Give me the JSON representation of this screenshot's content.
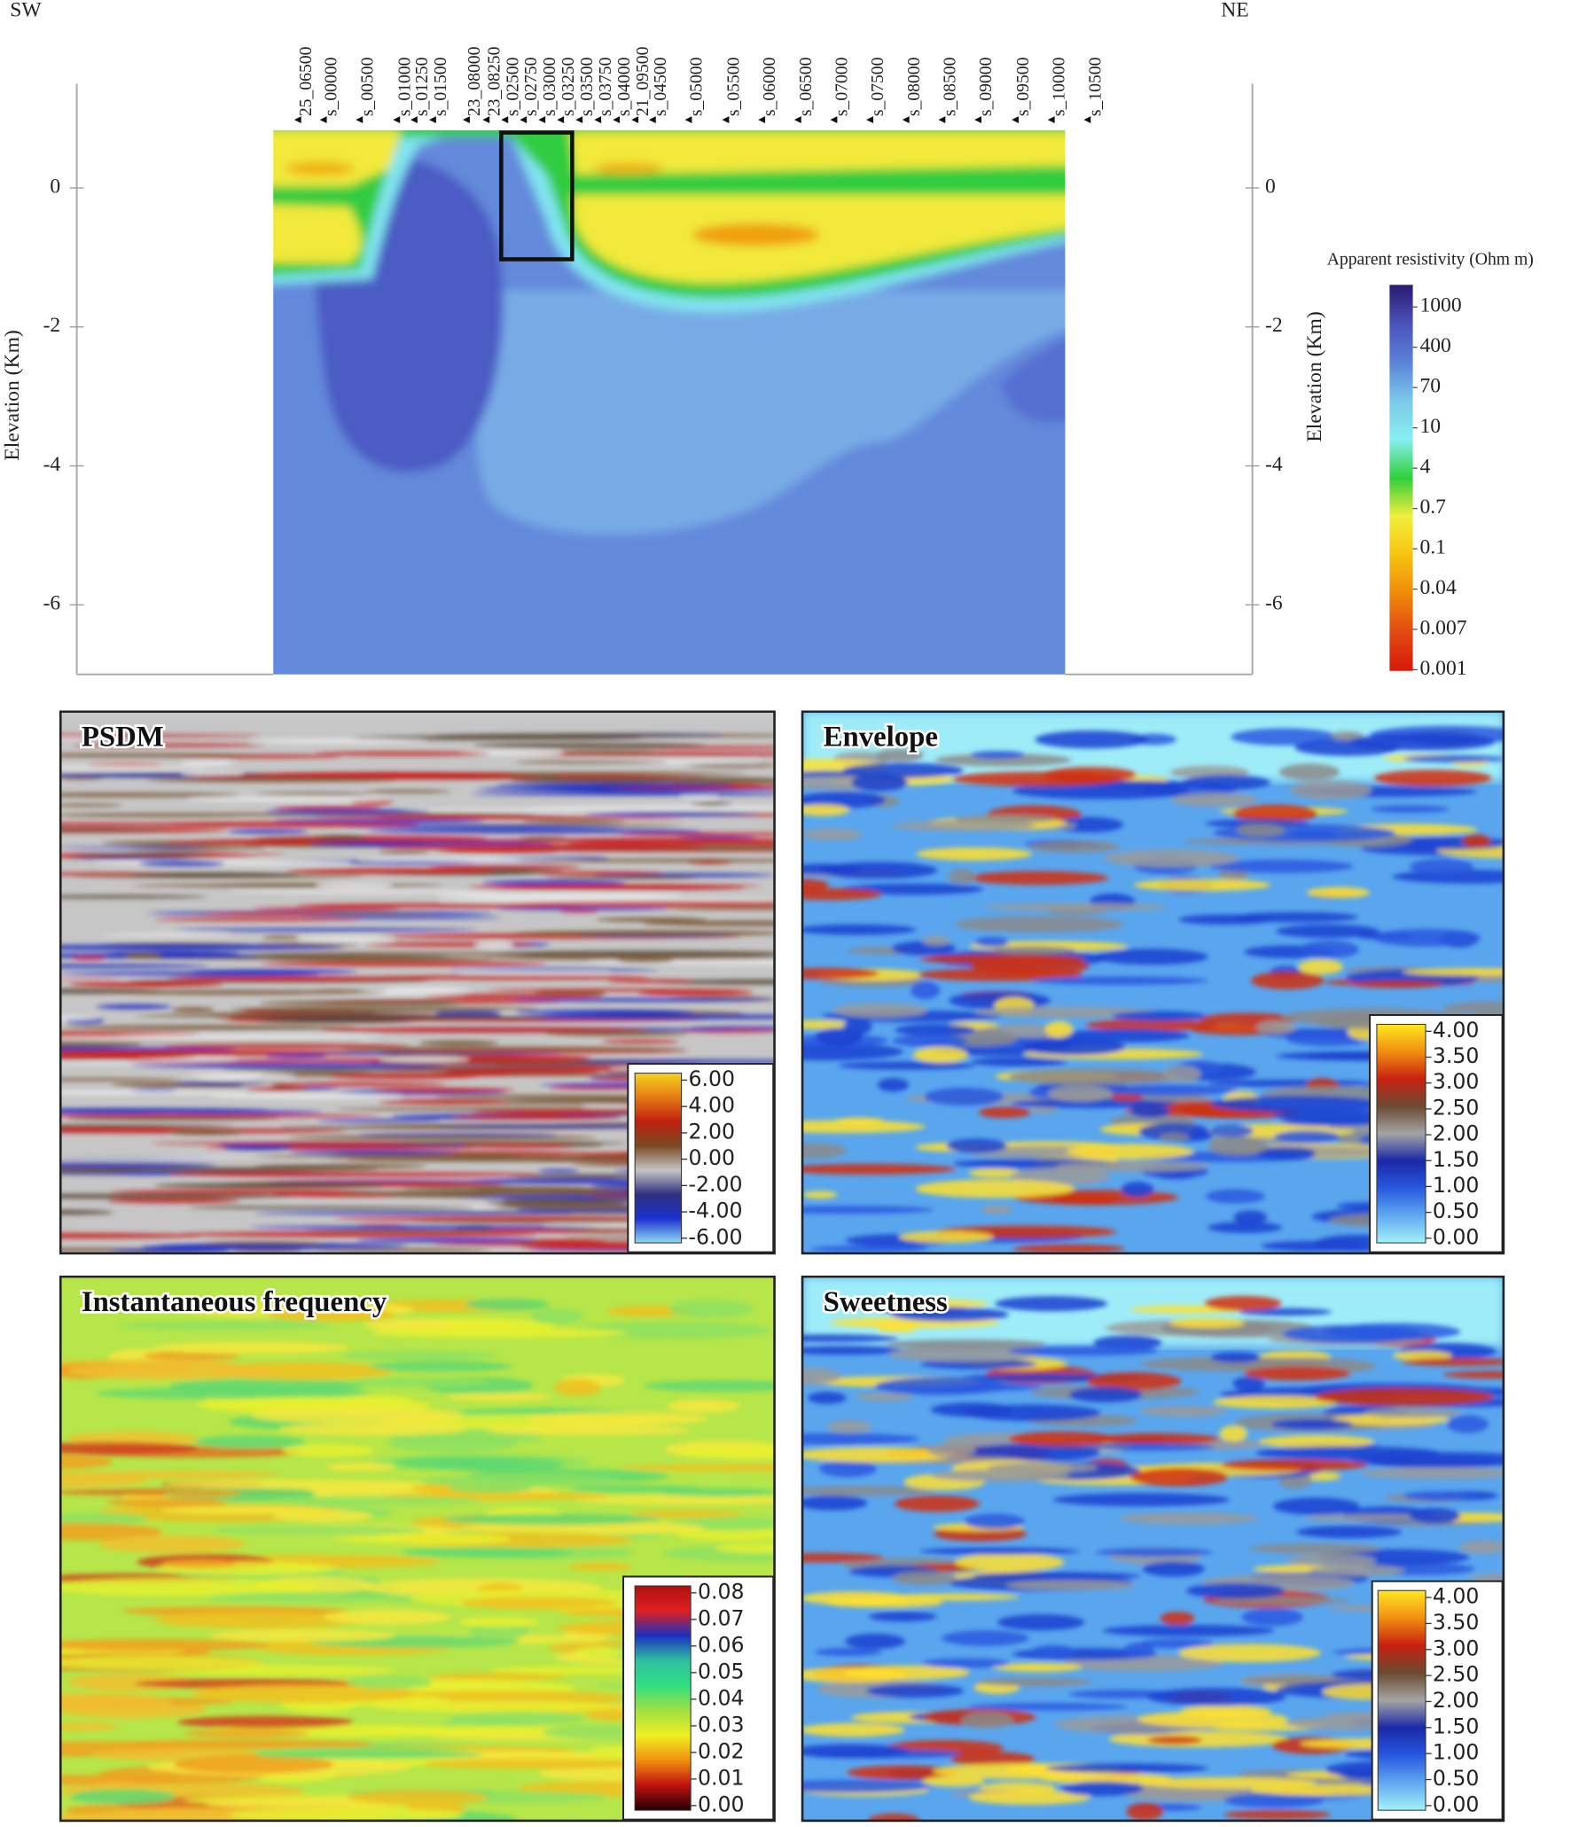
{
  "chart_data": [
    {
      "type": "section",
      "annotations": [
        "SW",
        "NE"
      ],
      "y_label": "Elevation (Km)",
      "ylim": [
        -7,
        1.5
      ],
      "yticks": [
        0,
        -2,
        -4,
        -6
      ],
      "categories": [
        "25_06500",
        "s_00000",
        "s_00500",
        "s_01000",
        "s_01250",
        "s_01500",
        "23_08000",
        "23_08250",
        "s_02500",
        "s_02750",
        "s_03000",
        "s_03250",
        "s_03500",
        "s_03750",
        "s_04000",
        "21_09500",
        "s_04500",
        "s_05000",
        "s_05500",
        "s_06000",
        "s_06500",
        "s_07000",
        "s_07500",
        "s_08000",
        "s_08500",
        "s_09000",
        "s_09500",
        "s_10000",
        "s_10500"
      ],
      "colorbar": {
        "title": "Apparent resistivity (Ohm m)",
        "ticks": [
          1000,
          400,
          70,
          10,
          4,
          0.7,
          0.1,
          0.04,
          0.007,
          0.001
        ],
        "colors": [
          "#2a1a72",
          "#4a52b8",
          "#5b82d8",
          "#7cc8ea",
          "#88eef0",
          "#2fd03a",
          "#f4ee3c",
          "#f6c410",
          "#f08a0a",
          "#e24a12",
          "#d8180a"
        ]
      }
    },
    {
      "type": "image",
      "title": "PSDM",
      "colorbar": {
        "ticks": [
          {
            "value": 6,
            "label": "6.00"
          },
          {
            "value": 4,
            "label": "4.00"
          },
          {
            "value": 2,
            "label": "2.00"
          },
          {
            "value": 0,
            "label": "0.00"
          },
          {
            "value": -2,
            "label": "-2.00"
          },
          {
            "value": -4,
            "label": "-4.00"
          },
          {
            "value": -6,
            "label": "-6.00"
          }
        ],
        "colors": [
          "#f5d420",
          "#e47a12",
          "#c02010",
          "#7a4a22",
          "#c4c4c4",
          "#30307e",
          "#1a30d0",
          "#90dcf4"
        ]
      }
    },
    {
      "type": "image",
      "title": "Envelope",
      "colorbar": {
        "ticks": [
          {
            "value": 4,
            "label": "4.00"
          },
          {
            "value": 3.5,
            "label": "3.50"
          },
          {
            "value": 3,
            "label": "3.00"
          },
          {
            "value": 2.5,
            "label": "2.50"
          },
          {
            "value": 2,
            "label": "2.00"
          },
          {
            "value": 1.5,
            "label": "1.50"
          },
          {
            "value": 1,
            "label": "1.00"
          },
          {
            "value": 0.5,
            "label": "0.50"
          },
          {
            "value": 0,
            "label": "0.00"
          }
        ],
        "colors": [
          "#ffe820",
          "#f09010",
          "#c82010",
          "#6a4a30",
          "#a4a4a4",
          "#1a28a8",
          "#2858e0",
          "#60a8f0",
          "#a4f2f8"
        ]
      }
    },
    {
      "type": "image",
      "title": "Instantaneous frequency",
      "colorbar": {
        "ticks": [
          {
            "value": 0.08,
            "label": "0.08"
          },
          {
            "value": 0.07,
            "label": "0.07"
          },
          {
            "value": 0.06,
            "label": "0.06"
          },
          {
            "value": 0.05,
            "label": "0.05"
          },
          {
            "value": 0.04,
            "label": "0.04"
          },
          {
            "value": 0.03,
            "label": "0.03"
          },
          {
            "value": 0.02,
            "label": "0.02"
          },
          {
            "value": 0.01,
            "label": "0.01"
          },
          {
            "value": 0,
            "label": "0.00"
          }
        ],
        "colors": [
          "#b01010",
          "#e02020",
          "#1a30c0",
          "#30c0a0",
          "#30e080",
          "#a0e040",
          "#f0f020",
          "#f09010",
          "#c01010",
          "#200000"
        ]
      }
    },
    {
      "type": "image",
      "title": "Sweetness",
      "colorbar": {
        "ticks": [
          {
            "value": 4,
            "label": "4.00"
          },
          {
            "value": 3.5,
            "label": "3.50"
          },
          {
            "value": 3,
            "label": "3.00"
          },
          {
            "value": 2.5,
            "label": "2.50"
          },
          {
            "value": 2,
            "label": "2.00"
          },
          {
            "value": 1.5,
            "label": "1.50"
          },
          {
            "value": 1,
            "label": "1.00"
          },
          {
            "value": 0.5,
            "label": "0.50"
          },
          {
            "value": 0,
            "label": "0.00"
          }
        ],
        "colors": [
          "#ffe820",
          "#f09010",
          "#c82010",
          "#6a4a30",
          "#a4a4a4",
          "#1a28a8",
          "#2858e0",
          "#60a8f0",
          "#a4f2f8"
        ]
      }
    }
  ]
}
